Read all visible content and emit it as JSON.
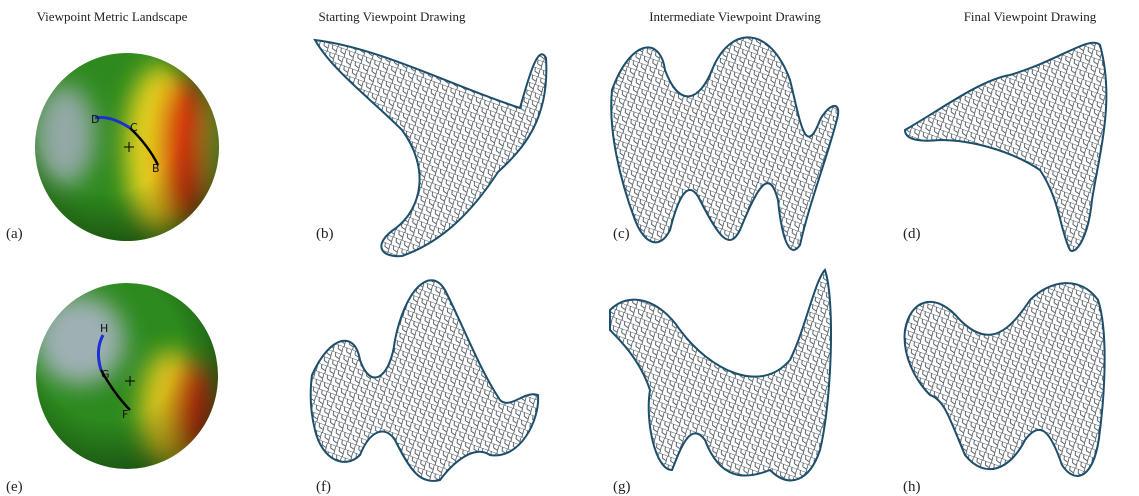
{
  "columns": [
    "Viewpoint Metric Landscape",
    "Starting Viewpoint Drawing",
    "Intermediate Viewpoint Drawing",
    "Final Viewpoint Drawing"
  ],
  "panels": [
    "(a)",
    "(b)",
    "(c)",
    "(d)",
    "(e)",
    "(f)",
    "(g)",
    "(h)"
  ],
  "landscapes": [
    {
      "points": [
        "D",
        "C",
        "B"
      ]
    },
    {
      "points": [
        "H",
        "G",
        "F"
      ]
    }
  ]
}
